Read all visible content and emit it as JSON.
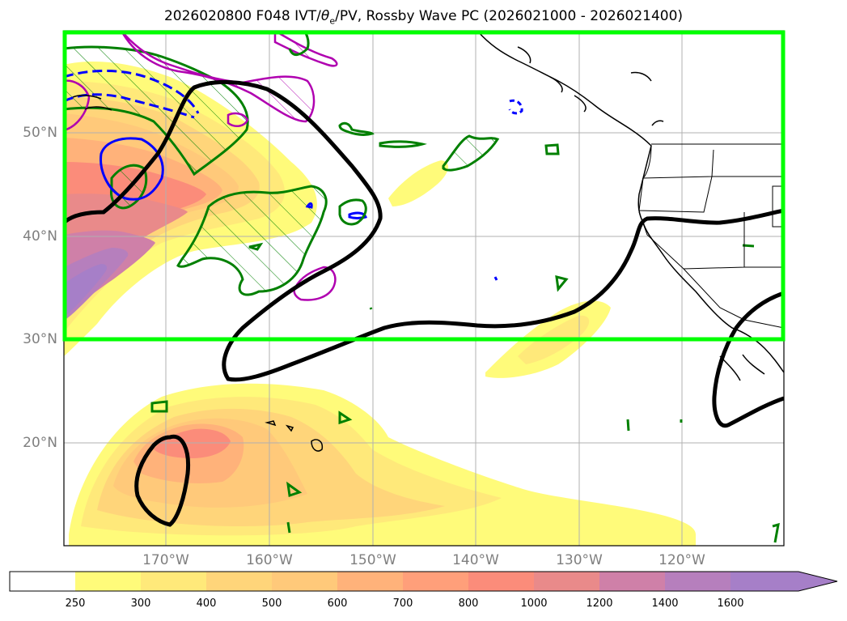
{
  "title": {
    "prefix": "2026020800 F048 IVT/",
    "theta": "θ",
    "theta_sub": "e",
    "suffix": "/PV, Rossby Wave PC (2026021000 - 2026021400)"
  },
  "axes": {
    "lat_labels": [
      "50°N",
      "40°N",
      "30°N",
      "20°N"
    ],
    "lon_labels": [
      "170°W",
      "160°W",
      "150°W",
      "140°W",
      "130°W",
      "120°W"
    ]
  },
  "colorbar": {
    "ticks": [
      "250",
      "300",
      "400",
      "500",
      "600",
      "700",
      "800",
      "1000",
      "1200",
      "1400",
      "1600"
    ],
    "colors": [
      "#ffffff",
      "#fffb7a",
      "#ffe97a",
      "#ffd57a",
      "#ffc97a",
      "#ffb27a",
      "#ff9f7a",
      "#fb8c7a",
      "#e98a8a",
      "#cf80a8",
      "#b67fbd",
      "#a67fc8"
    ]
  },
  "colors": {
    "box": "#00ff00",
    "rossby_contour": "#000000",
    "theta_contour": "#008000",
    "pv_contour": "#0000ff",
    "magenta_contour": "#b000b0"
  }
}
